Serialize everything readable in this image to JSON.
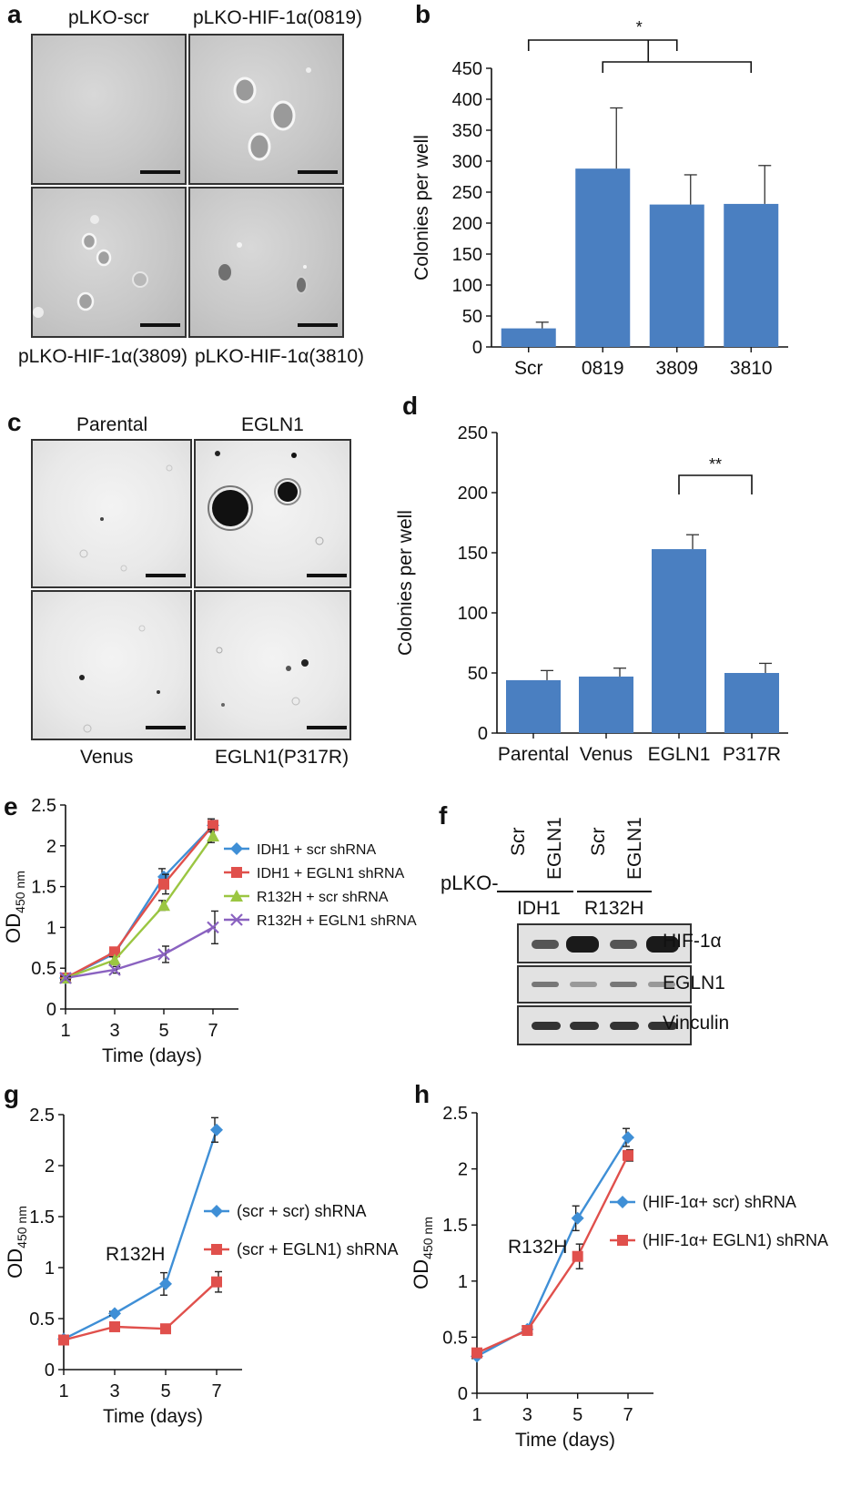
{
  "panels": {
    "a": {
      "letter": "a",
      "labels": {
        "top_left": "pLKO-scr",
        "top_right": "pLKO-HIF-1α(0819)",
        "bottom_left": "pLKO-HIF-1α(3809)",
        "bottom_right": "pLKO-HIF-1α(3810)"
      }
    },
    "b": {
      "letter": "b",
      "significance": "*",
      "chart_data": {
        "type": "bar",
        "categories": [
          "Scr",
          "0819",
          "3809",
          "3810"
        ],
        "values": [
          30,
          288,
          230,
          231
        ],
        "errors": [
          10,
          98,
          48,
          62
        ],
        "ylabel": "Colonies per well",
        "ylim": [
          0,
          450
        ],
        "yticks": [
          0,
          50,
          100,
          150,
          200,
          250,
          300,
          350,
          400,
          450
        ],
        "color": "#4a7fc1"
      }
    },
    "c": {
      "letter": "c",
      "labels": {
        "top_left": "Parental",
        "top_right": "EGLN1",
        "bottom_left": "Venus",
        "bottom_right": "EGLN1(P317R)"
      }
    },
    "d": {
      "letter": "d",
      "significance": "**",
      "chart_data": {
        "type": "bar",
        "categories": [
          "Parental",
          "Venus",
          "EGLN1",
          "P317R"
        ],
        "values": [
          44,
          47,
          153,
          50
        ],
        "errors": [
          8,
          7,
          12,
          8
        ],
        "ylabel": "Colonies per well",
        "ylim": [
          0,
          250
        ],
        "yticks": [
          0,
          50,
          100,
          150,
          200,
          250
        ],
        "color": "#4a7fc1"
      }
    },
    "e": {
      "letter": "e",
      "chart_data": {
        "type": "line",
        "x": [
          1,
          3,
          5,
          7
        ],
        "xlabel": "Time (days)",
        "ylabel_main": "OD",
        "ylabel_sub": "450 nm",
        "ylim": [
          0,
          2.5
        ],
        "yticks": [
          "0",
          "0.5",
          "1",
          "1.5",
          "2",
          "2.5"
        ],
        "series": [
          {
            "name": "IDH1 + scr shRNA",
            "values": [
              0.38,
              0.68,
              1.62,
              2.25
            ],
            "errors": [
              0.02,
              0.04,
              0.1,
              0.08
            ],
            "color": "#3f8fd6",
            "marker": "diamond"
          },
          {
            "name": "IDH1 + EGLN1 shRNA",
            "values": [
              0.38,
              0.7,
              1.53,
              2.25
            ],
            "errors": [
              0.02,
              0.04,
              0.12,
              0.06
            ],
            "color": "#e0504c",
            "marker": "square"
          },
          {
            "name": "R132H + scr shRNA",
            "values": [
              0.38,
              0.6,
              1.27,
              2.12
            ],
            "errors": [
              0.02,
              0.04,
              0.06,
              0.08
            ],
            "color": "#9bc642",
            "marker": "triangle"
          },
          {
            "name": "R132H + EGLN1 shRNA",
            "values": [
              0.38,
              0.48,
              0.67,
              1.0
            ],
            "errors": [
              0.02,
              0.04,
              0.1,
              0.2
            ],
            "color": "#8a62c0",
            "marker": "x"
          }
        ]
      }
    },
    "f": {
      "letter": "f",
      "prefix": "pLKO-",
      "lanes": [
        "Scr",
        "EGLN1",
        "Scr",
        "EGLN1"
      ],
      "groups": [
        "IDH1",
        "R132H"
      ],
      "rows": [
        "HIF-1α",
        "EGLN1",
        "Vinculin"
      ]
    },
    "g": {
      "letter": "g",
      "annotation": "R132H",
      "chart_data": {
        "type": "line",
        "x": [
          1,
          3,
          5,
          7
        ],
        "xlabel": "Time (days)",
        "ylabel_main": "OD",
        "ylabel_sub": "450 nm",
        "ylim": [
          0,
          2.5
        ],
        "yticks": [
          "0",
          "0.5",
          "1",
          "1.5",
          "2",
          "2.5"
        ],
        "series": [
          {
            "name": "(scr + scr) shRNA",
            "values": [
              0.3,
              0.55,
              0.84,
              2.35
            ],
            "errors": [
              0.02,
              0.02,
              0.11,
              0.12
            ],
            "color": "#3f8fd6",
            "marker": "diamond"
          },
          {
            "name": "(scr + EGLN1) shRNA",
            "values": [
              0.29,
              0.42,
              0.4,
              0.86
            ],
            "errors": [
              0.02,
              0.02,
              0.02,
              0.1
            ],
            "color": "#e0504c",
            "marker": "square"
          }
        ]
      }
    },
    "h": {
      "letter": "h",
      "annotation": "R132H",
      "chart_data": {
        "type": "line",
        "x": [
          1,
          3,
          5,
          7
        ],
        "xlabel": "Time (days)",
        "ylabel_main": "OD",
        "ylabel_sub": "450 nm",
        "ylim": [
          0,
          2.5
        ],
        "yticks": [
          "0",
          "0.5",
          "1",
          "1.5",
          "2",
          "2.5"
        ],
        "series": [
          {
            "name": "(HIF-1α+ scr) shRNA",
            "values": [
              0.33,
              0.57,
              1.56,
              2.28
            ],
            "errors": [
              0.02,
              0.03,
              0.11,
              0.08
            ],
            "color": "#3f8fd6",
            "marker": "diamond"
          },
          {
            "name": "(HIF-1α+ EGLN1) shRNA",
            "values": [
              0.36,
              0.56,
              1.22,
              2.12
            ],
            "errors": [
              0.02,
              0.03,
              0.11,
              0.05
            ],
            "color": "#e0504c",
            "marker": "square"
          }
        ]
      }
    }
  }
}
